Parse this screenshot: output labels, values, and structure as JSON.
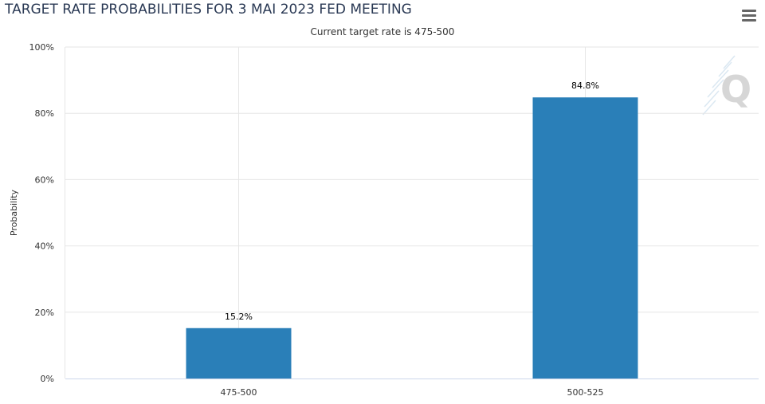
{
  "title": "TARGET RATE PROBABILITIES FOR 3 MAI 2023 FED MEETING",
  "subtitle": "Current target rate is 475-500",
  "menu_icon": "hamburger-menu-icon",
  "watermark_icon": "q-logo-icon",
  "colors": {
    "bar": "#2a7fb8",
    "grid": "#e6e6e6",
    "axis_line": "#ccd6eb",
    "title": "#2b3a55",
    "watermark": "#d9d9d9"
  },
  "chart_data": {
    "type": "bar",
    "title": "TARGET RATE PROBABILITIES FOR 3 MAI 2023 FED MEETING",
    "subtitle": "Current target rate is 475-500",
    "xlabel": "",
    "ylabel": "Probability",
    "categories": [
      "475-500",
      "500-525"
    ],
    "values": [
      15.2,
      84.8
    ],
    "data_labels": [
      "15.2%",
      "84.8%"
    ],
    "ylim": [
      0,
      100
    ],
    "yticks": [
      0,
      20,
      40,
      60,
      80,
      100
    ],
    "ytick_labels": [
      "0%",
      "20%",
      "40%",
      "60%",
      "80%",
      "100%"
    ],
    "grid": true,
    "legend": "none"
  }
}
